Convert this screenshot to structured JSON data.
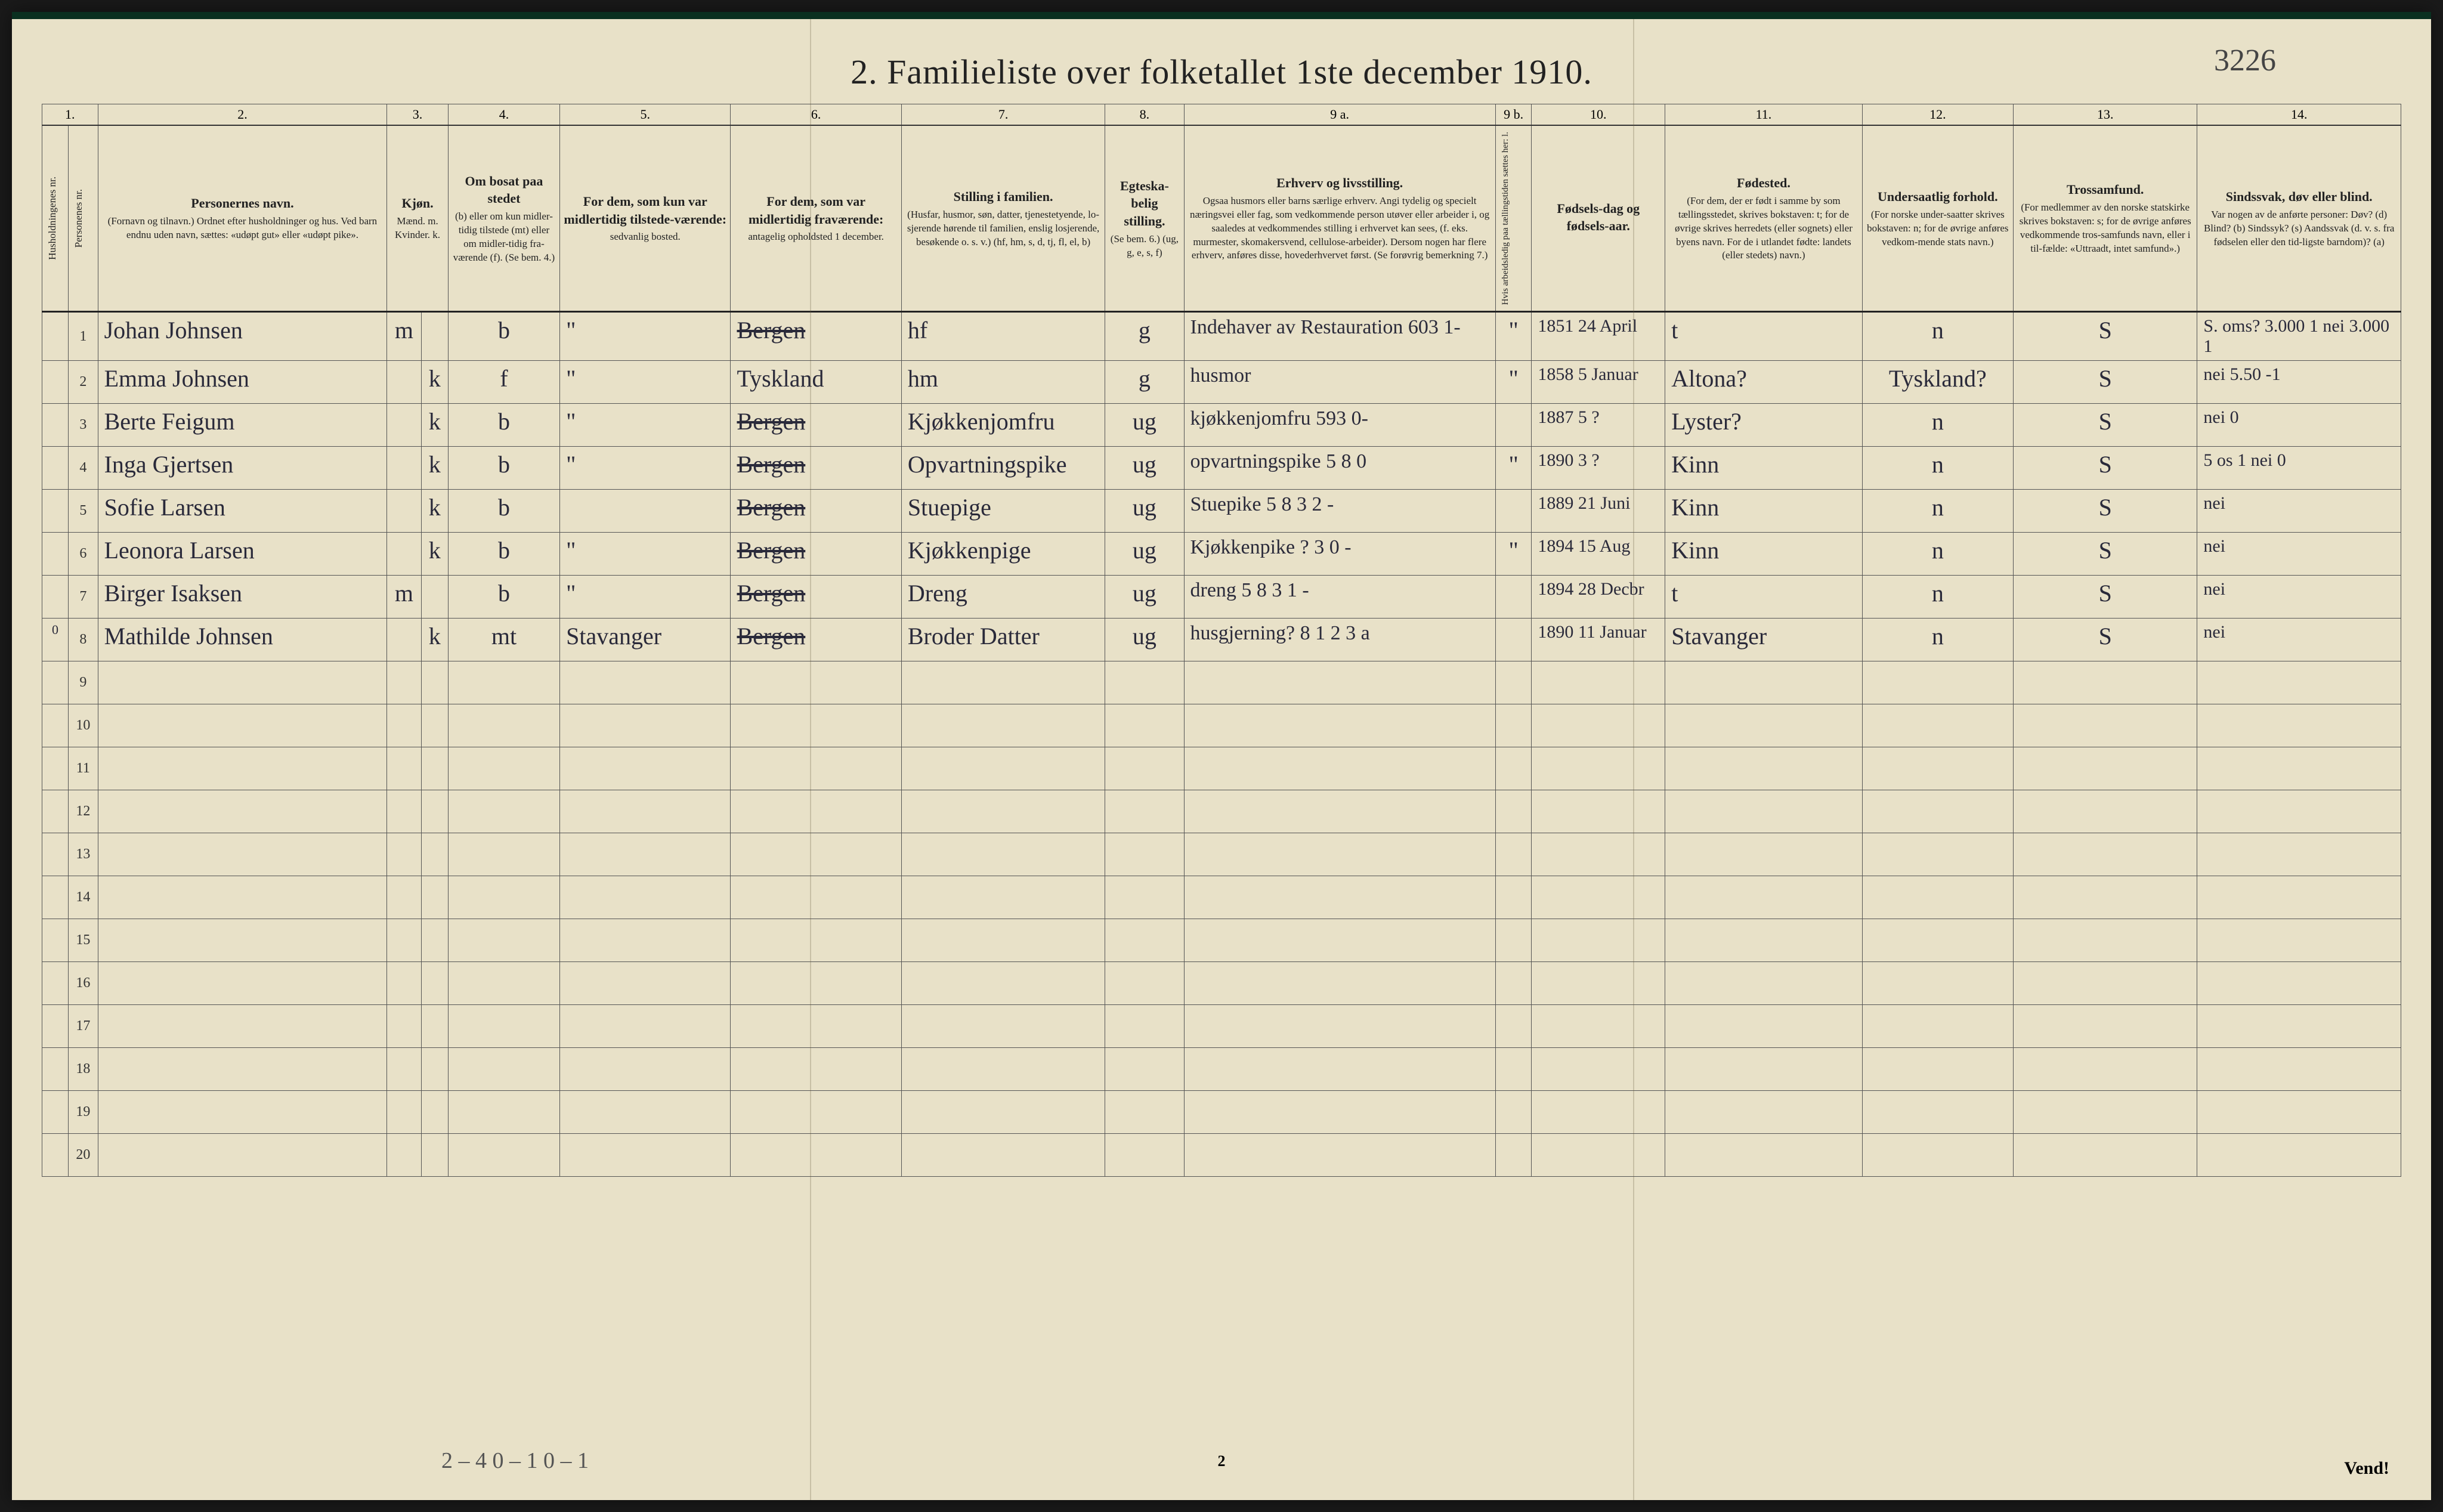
{
  "title": "2.   Familieliste over folketallet 1ste december 1910.",
  "stamp": "3226",
  "page_number": "2",
  "vend": "Vend!",
  "footer_notes": "2 – 4    0 – 1    0 – 1",
  "col_numbers": [
    "1.",
    "",
    "2.",
    "3.",
    "",
    "4.",
    "5.",
    "6.",
    "7.",
    "8.",
    "9 a.",
    "9 b.",
    "10.",
    "11.",
    "12.",
    "13.",
    "14."
  ],
  "headers": {
    "c1": {
      "title": "Husholdningenes nr.",
      "sub": ""
    },
    "c1b": {
      "title": "Personenes nr.",
      "sub": ""
    },
    "c2": {
      "title": "Personernes navn.",
      "sub": "(Fornavn og tilnavn.)\nOrdnet efter husholdninger og hus.\nVed barn endnu uden navn, sættes: «udøpt gut» eller «udøpt pike»."
    },
    "c3": {
      "title": "Kjøn.",
      "sub": "Mænd.  m."
    },
    "c3b": {
      "title": "",
      "sub": "Kvinder.  k."
    },
    "c4": {
      "title": "Om bosat paa stedet",
      "sub": "(b) eller om kun midler-tidig tilstede (mt) eller om midler-tidig fra-værende (f). (Se bem. 4.)"
    },
    "c5": {
      "title": "For dem, som kun var midlertidig tilstede-værende:",
      "sub": "sedvanlig bosted."
    },
    "c6": {
      "title": "For dem, som var midlertidig fraværende:",
      "sub": "antagelig opholdsted 1 december."
    },
    "c7": {
      "title": "Stilling i familien.",
      "sub": "(Husfar, husmor, søn, datter, tjenestetyende, lo-sjerende hørende til familien, enslig losjerende, besøkende o. s. v.) (hf, hm, s, d, tj, fl, el, b)"
    },
    "c8": {
      "title": "Egteska-belig stilling.",
      "sub": "(Se bem. 6.) (ug, g, e, s, f)"
    },
    "c9a": {
      "title": "Erhverv og livsstilling.",
      "sub": "Ogsaa husmors eller barns særlige erhverv. Angi tydelig og specielt næringsvei eller fag, som vedkommende person utøver eller arbeider i, og saaledes at vedkommendes stilling i erhvervet kan sees, (f. eks. murmester, skomakersvend, cellulose-arbeider). Dersom nogen har flere erhverv, anføres disse, hovederhvervet først. (Se forøvrig bemerkning 7.)"
    },
    "c9b": {
      "title": "",
      "sub": "Hvis arbeidsledig paa tællingstiden sættes her: l."
    },
    "c10": {
      "title": "Fødsels-dag og fødsels-aar.",
      "sub": ""
    },
    "c11": {
      "title": "Fødested.",
      "sub": "(For dem, der er født i samme by som tællingsstedet, skrives bokstaven: t; for de øvrige skrives herredets (eller sognets) eller byens navn. For de i utlandet fødte: landets (eller stedets) navn.)"
    },
    "c12": {
      "title": "Undersaatlig forhold.",
      "sub": "(For norske under-saatter skrives bokstaven: n; for de øvrige anføres vedkom-mende stats navn.)"
    },
    "c13": {
      "title": "Trossamfund.",
      "sub": "(For medlemmer av den norske statskirke skrives bokstaven: s; for de øvrige anføres vedkommende tros-samfunds navn, eller i til-fælde: «Uttraadt, intet samfund».)"
    },
    "c14": {
      "title": "Sindssvak, døv eller blind.",
      "sub": "Var nogen av de anførte personer:\nDøv? (d)\nBlind? (b)\nSindssyk? (s)\nAandssvak (d. v. s. fra fødselen eller den tid-ligste barndom)? (a)"
    }
  },
  "rows": [
    {
      "hh": "",
      "n": "1",
      "name": "Johan Johnsen",
      "sex_m": "m",
      "sex_k": "",
      "res": "b",
      "mt": "\"",
      "frav": "Bergen",
      "fam": "hf",
      "eg": "g",
      "erh": "Indehaver av Restauration  603 1-",
      "al": "\"",
      "birth": "1851 24 April",
      "fsted": "t",
      "und": "n",
      "tro": "S",
      "sinds": "S. oms? 3.000 1\nnei  3.000 1"
    },
    {
      "hh": "",
      "n": "2",
      "name": "Emma Johnsen",
      "sex_m": "",
      "sex_k": "k",
      "res": "f",
      "mt": "\"",
      "frav": "Tyskland",
      "fam": "hm",
      "eg": "g",
      "erh": "husmor",
      "al": "\"",
      "birth": "1858 5 Januar",
      "fsted": "Altona?",
      "und": "Tyskland?",
      "tro": "S",
      "sinds": "nei  5.50 -1"
    },
    {
      "hh": "",
      "n": "3",
      "name": "Berte Feigum",
      "sex_m": "",
      "sex_k": "k",
      "res": "b",
      "mt": "\"",
      "frav": "Bergen",
      "fam": "Kjøkkenjomfru",
      "eg": "ug",
      "erh": "kjøkkenjomfru  593 0-",
      "al": "",
      "birth": "1887 5 ?",
      "fsted": "Lyster?",
      "und": "n",
      "tro": "S",
      "sinds": "nei 0"
    },
    {
      "hh": "",
      "n": "4",
      "name": "Inga Gjertsen",
      "sex_m": "",
      "sex_k": "k",
      "res": "b",
      "mt": "\"",
      "frav": "Bergen",
      "fam": "Opvartningspike",
      "eg": "ug",
      "erh": "opvartningspike  5 8 0",
      "al": "\"",
      "birth": "1890 3 ?",
      "fsted": "Kinn",
      "und": "n",
      "tro": "S",
      "sinds": "5 os 1\nnei 0"
    },
    {
      "hh": "",
      "n": "5",
      "name": "Sofie Larsen",
      "sex_m": "",
      "sex_k": "k",
      "res": "b",
      "mt": "",
      "frav": "Bergen",
      "fam": "Stuepige",
      "eg": "ug",
      "erh": "Stuepike  5 8 3 2 -",
      "al": "",
      "birth": "1889 21 Juni",
      "fsted": "Kinn",
      "und": "n",
      "tro": "S",
      "sinds": "nei"
    },
    {
      "hh": "",
      "n": "6",
      "name": "Leonora Larsen",
      "sex_m": "",
      "sex_k": "k",
      "res": "b",
      "mt": "\"",
      "frav": "Bergen",
      "fam": "Kjøkkenpige",
      "eg": "ug",
      "erh": "Kjøkkenpike  ? 3 0 -",
      "al": "\"",
      "birth": "1894 15 Aug",
      "fsted": "Kinn",
      "und": "n",
      "tro": "S",
      "sinds": "nei"
    },
    {
      "hh": "",
      "n": "7",
      "name": "Birger Isaksen",
      "sex_m": "m",
      "sex_k": "",
      "res": "b",
      "mt": "\"",
      "frav": "Bergen",
      "fam": "Dreng",
      "eg": "ug",
      "erh": "dreng  5 8 3 1 -",
      "al": "",
      "birth": "1894 28 Decbr",
      "fsted": "t",
      "und": "n",
      "tro": "S",
      "sinds": "nei"
    },
    {
      "hh": "0",
      "n": "8",
      "name": "Mathilde Johnsen",
      "sex_m": "",
      "sex_k": "k",
      "res": "mt",
      "mt": "Stavanger",
      "frav": "Bergen",
      "fam": "Broder Datter",
      "eg": "ug",
      "erh": "husgjerning?  8 1 2 3 a",
      "al": "",
      "birth": "1890 11 Januar",
      "fsted": "Stavanger",
      "und": "n",
      "tro": "S",
      "sinds": "nei"
    }
  ],
  "empty_rows": [
    "9",
    "10",
    "11",
    "12",
    "13",
    "14",
    "15",
    "16",
    "17",
    "18",
    "19",
    "20"
  ]
}
